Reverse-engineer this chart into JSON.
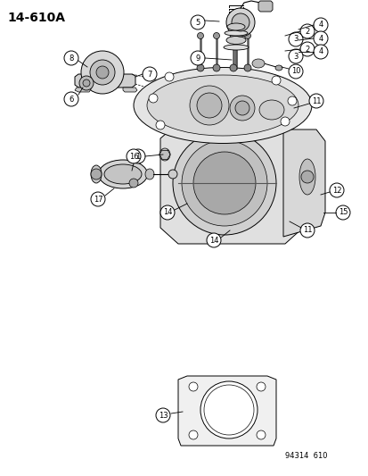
{
  "title": "14-610A",
  "watermark": "94314  610",
  "bg_color": "#ffffff",
  "fig_width": 4.14,
  "fig_height": 5.33,
  "dpi": 100,
  "title_fontsize": 10,
  "watermark_fontsize": 6,
  "label_fontsize": 6,
  "circle_r": 0.013
}
